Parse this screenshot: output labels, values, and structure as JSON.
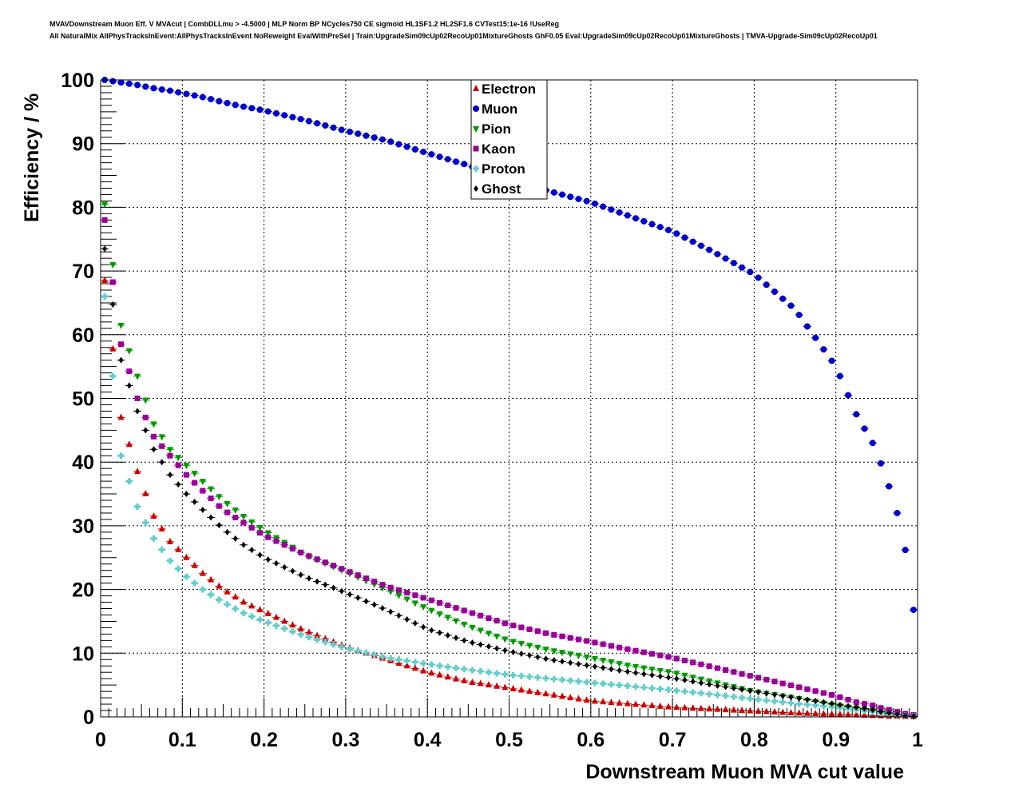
{
  "header": {
    "line1": "MVAVDownstream Muon Eff. V MVAcut | CombDLLmu > -4.5000 | MLP Norm BP NCycles750 CE sigmoid HL1SF1.2 HL2SF1.6 CVTest15:1e-16 !UseReg",
    "line2": "All NaturalMix AllPhysTracksInEvent:AllPhysTracksInEvent NoReweight EvalWithPreSel | Train:UpgradeSim09cUp02RecoUp01MixtureGhosts GhF0.05 Eval:UpgradeSim09cUp02RecoUp01MixtureGhosts | TMVA-Upgrade-Sim09cUp02RecoUp01"
  },
  "chart_data": {
    "type": "scatter",
    "xlabel": "Downstream Muon MVA cut value",
    "ylabel": "Efficiency / %",
    "xlim": [
      0,
      1
    ],
    "ylim": [
      0,
      100
    ],
    "xticks": [
      "0",
      "0.1",
      "0.2",
      "0.3",
      "0.4",
      "0.5",
      "0.6",
      "0.7",
      "0.8",
      "0.9",
      "1"
    ],
    "yticks": [
      "0",
      "10",
      "20",
      "30",
      "40",
      "50",
      "60",
      "70",
      "80",
      "90",
      "100"
    ],
    "grid": true,
    "legend_position": "top-center",
    "x": [
      0.005,
      0.025,
      0.045,
      0.065,
      0.085,
      0.105,
      0.125,
      0.15,
      0.175,
      0.2,
      0.25,
      0.3,
      0.35,
      0.4,
      0.45,
      0.5,
      0.55,
      0.6,
      0.65,
      0.7,
      0.75,
      0.8,
      0.85,
      0.9,
      0.925,
      0.945,
      0.955,
      0.965,
      0.975,
      0.985,
      0.995
    ],
    "series": [
      {
        "name": "Electron",
        "color": "#cc0000",
        "marker": "triangle-up",
        "values": [
          68.5,
          47,
          38.5,
          31.5,
          27.5,
          25,
          22.5,
          20,
          18,
          16.5,
          13.5,
          11,
          9,
          7,
          5.5,
          4.5,
          3.5,
          2.5,
          2,
          1.5,
          1.2,
          0.9,
          0.6,
          0.4,
          0.3,
          0.2,
          0.15,
          0.1,
          0.08,
          0.05,
          0.02
        ]
      },
      {
        "name": "Muon",
        "color": "#0000cc",
        "marker": "circle",
        "values": [
          100,
          99.6,
          99.2,
          98.7,
          98.3,
          97.8,
          97.3,
          96.5,
          95.8,
          95.2,
          93.7,
          92,
          90.5,
          88.5,
          86.6,
          84.3,
          82.5,
          80.8,
          78.5,
          76.2,
          73,
          69.5,
          64,
          55,
          47.5,
          43,
          39.8,
          36.2,
          32,
          26.2,
          16.8
        ]
      },
      {
        "name": "Pion",
        "color": "#009900",
        "marker": "triangle-down",
        "values": [
          80.5,
          61.5,
          53.5,
          46,
          42,
          39.5,
          37,
          34,
          31.5,
          29.3,
          25.5,
          22.8,
          20,
          17,
          14.3,
          12,
          10.5,
          9.3,
          8,
          7,
          5.5,
          4,
          3,
          1.8,
          1.4,
          1,
          0.8,
          0.6,
          0.4,
          0.2,
          0.1
        ]
      },
      {
        "name": "Kaon",
        "color": "#990099",
        "marker": "square",
        "values": [
          78,
          58.5,
          50,
          44,
          41,
          38,
          35.5,
          32.5,
          30.5,
          28.5,
          25.5,
          23,
          20.5,
          18.5,
          16.5,
          14.5,
          13,
          11.8,
          10.5,
          9.3,
          7.8,
          6.3,
          4.8,
          3.3,
          2.3,
          1.8,
          1.4,
          1.1,
          0.8,
          0.5,
          0.3
        ]
      },
      {
        "name": "Proton",
        "color": "#66cccc",
        "marker": "cross",
        "values": [
          66,
          41,
          33,
          28,
          24.5,
          22,
          20,
          18,
          16.3,
          15,
          12.7,
          10.8,
          9.3,
          8.3,
          7.4,
          6.6,
          6,
          5.4,
          4.8,
          4.2,
          3.5,
          2.8,
          2.1,
          1.5,
          1.1,
          0.8,
          0.6,
          0.4,
          0.3,
          0.2,
          0.1
        ]
      },
      {
        "name": "Ghost",
        "color": "#000000",
        "marker": "diamond",
        "values": [
          73.5,
          56,
          48,
          42,
          38,
          35,
          32.5,
          29.5,
          27,
          25,
          22,
          19.5,
          16.8,
          13.8,
          11.8,
          10.3,
          9,
          8,
          7,
          6.1,
          5,
          4,
          3,
          2,
          1.5,
          1.1,
          0.8,
          0.6,
          0.4,
          0.2,
          0.1
        ]
      }
    ]
  }
}
